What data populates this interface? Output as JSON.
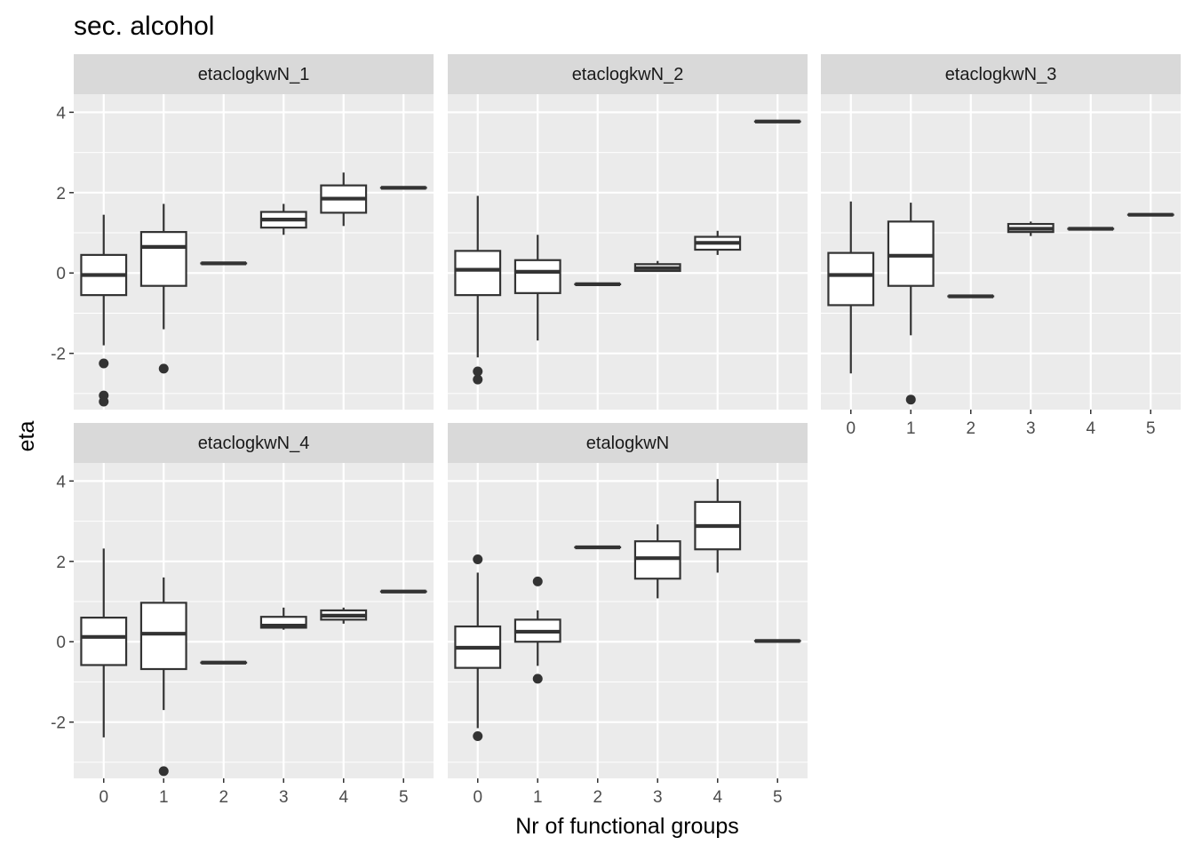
{
  "chart_data": {
    "type": "boxplot",
    "title": "sec. alcohol",
    "xlabel": "Nr of functional groups",
    "ylabel": "eta",
    "facet_layout": "3 columns, 2 rows, shared y axis",
    "x_categories": [
      "0",
      "1",
      "2",
      "3",
      "4",
      "5"
    ],
    "y_ticks": [
      -2,
      0,
      2,
      4
    ],
    "y_tick_labels": [
      "-2",
      "0",
      "2",
      "4"
    ],
    "ylim": [
      -3.4,
      4.45
    ],
    "grid": true,
    "colors": {
      "panel_bg": "#ebebeb",
      "strip_bg": "#d9d9d9",
      "grid": "#ffffff",
      "box_line": "#333333",
      "box_fill": "#ffffff"
    },
    "panels": [
      {
        "name": "etaclogkwN_1",
        "boxes": [
          {
            "x": "0",
            "min": -1.8,
            "q1": -0.55,
            "median": -0.05,
            "q3": 0.45,
            "max": 1.45,
            "outliers": [
              -2.25,
              -3.05,
              -3.2
            ]
          },
          {
            "x": "1",
            "min": -1.4,
            "q1": -0.32,
            "median": 0.65,
            "q3": 1.02,
            "max": 1.72,
            "outliers": [
              -2.38
            ]
          },
          {
            "x": "2",
            "min": 0.24,
            "q1": 0.24,
            "median": 0.24,
            "q3": 0.24,
            "max": 0.24,
            "outliers": []
          },
          {
            "x": "3",
            "min": 0.95,
            "q1": 1.13,
            "median": 1.33,
            "q3": 1.52,
            "max": 1.72,
            "outliers": []
          },
          {
            "x": "4",
            "min": 1.17,
            "q1": 1.5,
            "median": 1.85,
            "q3": 2.18,
            "max": 2.5,
            "outliers": []
          },
          {
            "x": "5",
            "min": 2.12,
            "q1": 2.12,
            "median": 2.12,
            "q3": 2.12,
            "max": 2.12,
            "outliers": []
          }
        ]
      },
      {
        "name": "etaclogkwN_2",
        "boxes": [
          {
            "x": "0",
            "min": -2.1,
            "q1": -0.55,
            "median": 0.08,
            "q3": 0.55,
            "max": 1.92,
            "outliers": [
              -2.45,
              -2.65
            ]
          },
          {
            "x": "1",
            "min": -1.68,
            "q1": -0.5,
            "median": 0.03,
            "q3": 0.32,
            "max": 0.95,
            "outliers": []
          },
          {
            "x": "2",
            "min": -0.28,
            "q1": -0.28,
            "median": -0.28,
            "q3": -0.28,
            "max": -0.28,
            "outliers": []
          },
          {
            "x": "3",
            "min": 0.05,
            "q1": 0.05,
            "median": 0.12,
            "q3": 0.22,
            "max": 0.3,
            "outliers": []
          },
          {
            "x": "4",
            "min": 0.45,
            "q1": 0.58,
            "median": 0.75,
            "q3": 0.9,
            "max": 1.05,
            "outliers": []
          },
          {
            "x": "5",
            "min": 3.77,
            "q1": 3.77,
            "median": 3.77,
            "q3": 3.77,
            "max": 3.77,
            "outliers": []
          }
        ]
      },
      {
        "name": "etaclogkwN_3",
        "boxes": [
          {
            "x": "0",
            "min": -2.5,
            "q1": -0.8,
            "median": -0.05,
            "q3": 0.5,
            "max": 1.78,
            "outliers": []
          },
          {
            "x": "1",
            "min": -1.55,
            "q1": -0.32,
            "median": 0.43,
            "q3": 1.28,
            "max": 1.75,
            "outliers": [
              -3.15
            ]
          },
          {
            "x": "2",
            "min": -0.58,
            "q1": -0.58,
            "median": -0.58,
            "q3": -0.58,
            "max": -0.58,
            "outliers": []
          },
          {
            "x": "3",
            "min": 0.92,
            "q1": 1.02,
            "median": 1.1,
            "q3": 1.22,
            "max": 1.28,
            "outliers": []
          },
          {
            "x": "4",
            "min": 1.1,
            "q1": 1.1,
            "median": 1.1,
            "q3": 1.1,
            "max": 1.1,
            "outliers": []
          },
          {
            "x": "5",
            "min": 1.45,
            "q1": 1.45,
            "median": 1.45,
            "q3": 1.45,
            "max": 1.45,
            "outliers": []
          }
        ]
      },
      {
        "name": "etaclogkwN_4",
        "boxes": [
          {
            "x": "0",
            "min": -2.38,
            "q1": -0.58,
            "median": 0.12,
            "q3": 0.6,
            "max": 2.32,
            "outliers": []
          },
          {
            "x": "1",
            "min": -1.7,
            "q1": -0.68,
            "median": 0.2,
            "q3": 0.97,
            "max": 1.6,
            "outliers": [
              -3.22
            ]
          },
          {
            "x": "2",
            "min": -0.52,
            "q1": -0.52,
            "median": -0.52,
            "q3": -0.52,
            "max": -0.52,
            "outliers": []
          },
          {
            "x": "3",
            "min": 0.3,
            "q1": 0.35,
            "median": 0.4,
            "q3": 0.62,
            "max": 0.85,
            "outliers": []
          },
          {
            "x": "4",
            "min": 0.45,
            "q1": 0.55,
            "median": 0.65,
            "q3": 0.78,
            "max": 0.85,
            "outliers": []
          },
          {
            "x": "5",
            "min": 1.25,
            "q1": 1.25,
            "median": 1.25,
            "q3": 1.25,
            "max": 1.25,
            "outliers": []
          }
        ]
      },
      {
        "name": "etalogkwN",
        "boxes": [
          {
            "x": "0",
            "min": -2.15,
            "q1": -0.65,
            "median": -0.15,
            "q3": 0.38,
            "max": 1.72,
            "outliers": [
              2.05,
              -2.35
            ]
          },
          {
            "x": "1",
            "min": -0.6,
            "q1": 0.0,
            "median": 0.25,
            "q3": 0.55,
            "max": 0.78,
            "outliers": [
              1.5,
              -0.92
            ]
          },
          {
            "x": "2",
            "min": 2.35,
            "q1": 2.35,
            "median": 2.35,
            "q3": 2.35,
            "max": 2.35,
            "outliers": []
          },
          {
            "x": "3",
            "min": 1.08,
            "q1": 1.57,
            "median": 2.08,
            "q3": 2.5,
            "max": 2.92,
            "outliers": []
          },
          {
            "x": "4",
            "min": 1.72,
            "q1": 2.3,
            "median": 2.88,
            "q3": 3.48,
            "max": 4.05,
            "outliers": []
          },
          {
            "x": "5",
            "min": 0.02,
            "q1": 0.02,
            "median": 0.02,
            "q3": 0.02,
            "max": 0.02,
            "outliers": []
          }
        ]
      }
    ]
  }
}
